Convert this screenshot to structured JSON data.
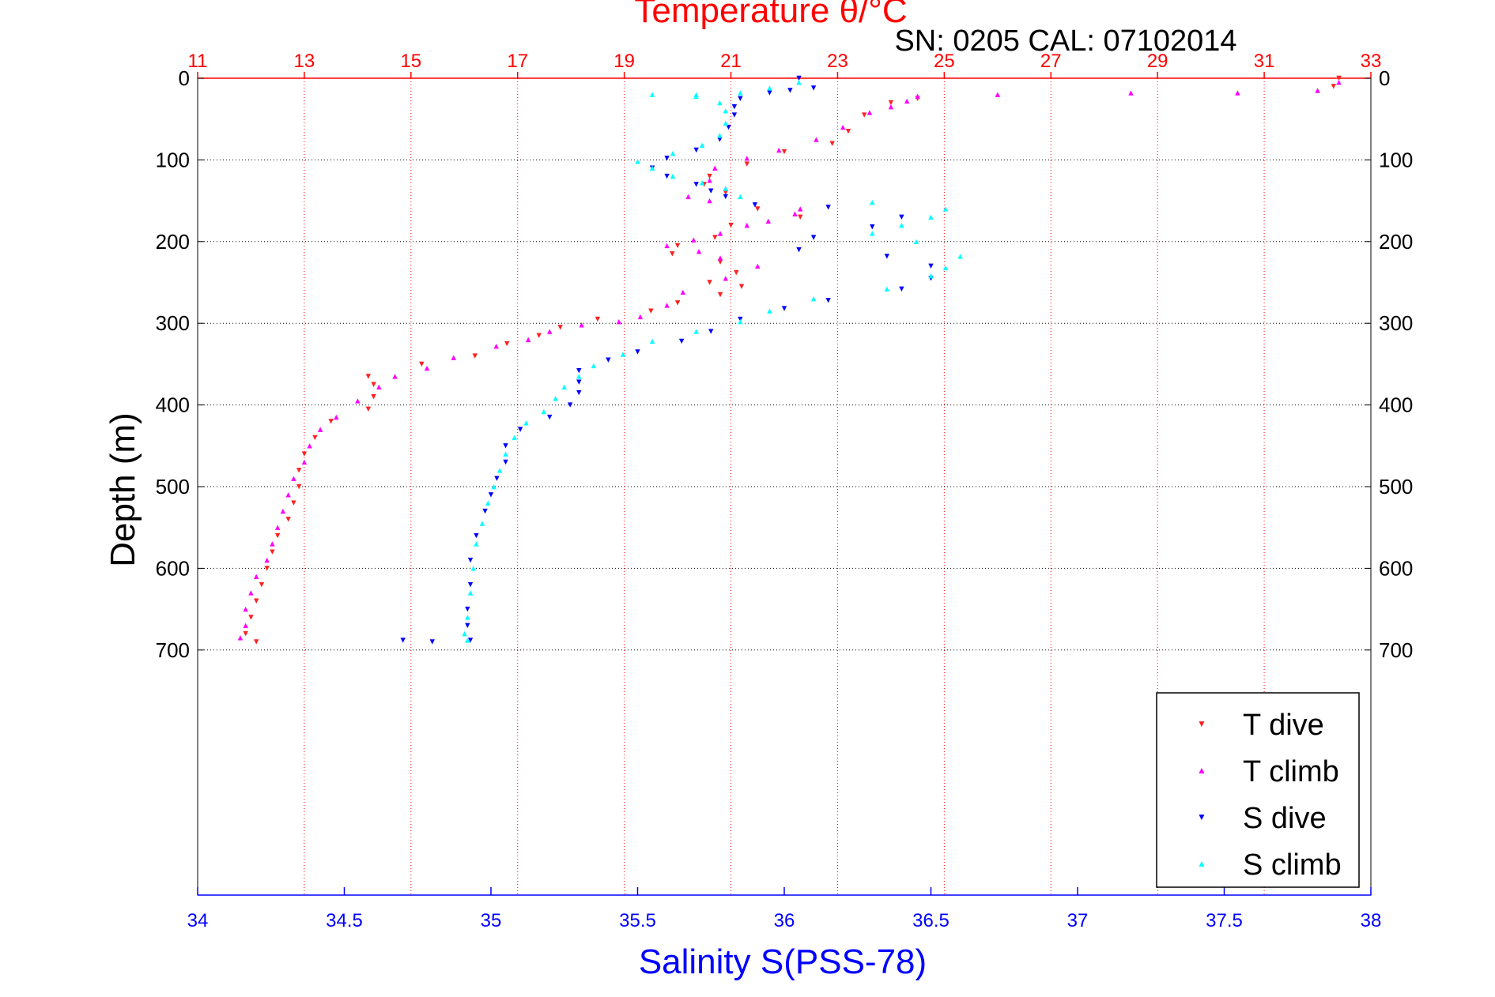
{
  "colors": {
    "temperature": "#ff0000",
    "salinity": "#0000ff",
    "t_dive": "#ff2020",
    "t_climb": "#ff00ff",
    "s_dive": "#0000ff",
    "s_climb": "#00ffff",
    "grid_top": "#ff0000",
    "grid_y": "#000000"
  },
  "chart_data": {
    "type": "scatter",
    "title": "Temperature θ/°C",
    "subtitle": "SN: 0205  CAL: 07102014",
    "ylabel": "Depth (m)",
    "xlabel_bottom": "Salinity S(PSS-78)",
    "xlabel_top": "Temperature θ/°C",
    "ylim": [
      0,
      1000
    ],
    "y_reversed": true,
    "y_ticks": [
      "0",
      "100",
      "200",
      "300",
      "400",
      "500",
      "600",
      "700"
    ],
    "y_tick_values": [
      0,
      100,
      200,
      300,
      400,
      500,
      600,
      700
    ],
    "x_top": {
      "label": "Temperature θ/°C",
      "range": [
        11,
        33
      ],
      "ticks": [
        "11",
        "13",
        "15",
        "17",
        "19",
        "21",
        "23",
        "25",
        "27",
        "29",
        "31",
        "33"
      ],
      "tick_values": [
        11,
        13,
        15,
        17,
        19,
        21,
        23,
        25,
        27,
        29,
        31,
        33
      ]
    },
    "x_bottom": {
      "label": "Salinity S(PSS-78)",
      "range": [
        34,
        38
      ],
      "ticks": [
        "34",
        "34.5",
        "35",
        "35.5",
        "36",
        "36.5",
        "37",
        "37.5",
        "38"
      ],
      "tick_values": [
        34,
        34.5,
        35,
        35.5,
        36,
        36.5,
        37,
        37.5,
        38
      ]
    },
    "grid": true,
    "legend_position": "bottom-right",
    "series": [
      {
        "name": "T dive",
        "axis": "temperature",
        "marker": "triangle-down",
        "points": [
          [
            32.4,
            0
          ],
          [
            32.3,
            10
          ],
          [
            24.5,
            25
          ],
          [
            24.0,
            30
          ],
          [
            23.5,
            45
          ],
          [
            23.2,
            65
          ],
          [
            22.9,
            80
          ],
          [
            22.0,
            90
          ],
          [
            21.3,
            105
          ],
          [
            20.6,
            120
          ],
          [
            20.5,
            130
          ],
          [
            20.9,
            140
          ],
          [
            21.5,
            160
          ],
          [
            22.3,
            170
          ],
          [
            21.0,
            180
          ],
          [
            20.7,
            195
          ],
          [
            20.0,
            205
          ],
          [
            19.9,
            215
          ],
          [
            20.8,
            225
          ],
          [
            21.1,
            238
          ],
          [
            20.6,
            250
          ],
          [
            21.2,
            255
          ],
          [
            20.8,
            265
          ],
          [
            20.0,
            275
          ],
          [
            19.5,
            285
          ],
          [
            18.5,
            295
          ],
          [
            17.8,
            305
          ],
          [
            17.4,
            315
          ],
          [
            16.8,
            325
          ],
          [
            16.2,
            340
          ],
          [
            15.2,
            350
          ],
          [
            14.2,
            365
          ],
          [
            14.3,
            375
          ],
          [
            14.3,
            390
          ],
          [
            14.2,
            405
          ],
          [
            13.5,
            420
          ],
          [
            13.2,
            440
          ],
          [
            13.0,
            460
          ],
          [
            12.9,
            480
          ],
          [
            12.9,
            500
          ],
          [
            12.8,
            520
          ],
          [
            12.7,
            540
          ],
          [
            12.5,
            560
          ],
          [
            12.4,
            580
          ],
          [
            12.3,
            600
          ],
          [
            12.2,
            620
          ],
          [
            12.1,
            640
          ],
          [
            12.0,
            660
          ],
          [
            11.9,
            680
          ],
          [
            12.1,
            690
          ]
        ]
      },
      {
        "name": "T climb",
        "axis": "temperature",
        "marker": "triangle-up",
        "points": [
          [
            32.4,
            5
          ],
          [
            32.0,
            15
          ],
          [
            30.5,
            18
          ],
          [
            28.5,
            18
          ],
          [
            26.0,
            20
          ],
          [
            24.5,
            22
          ],
          [
            24.3,
            28
          ],
          [
            24.0,
            35
          ],
          [
            23.6,
            42
          ],
          [
            23.1,
            60
          ],
          [
            22.6,
            75
          ],
          [
            21.9,
            88
          ],
          [
            21.3,
            98
          ],
          [
            20.7,
            110
          ],
          [
            20.6,
            125
          ],
          [
            20.9,
            135
          ],
          [
            20.2,
            145
          ],
          [
            20.6,
            150
          ],
          [
            22.3,
            160
          ],
          [
            22.2,
            166
          ],
          [
            21.7,
            175
          ],
          [
            21.3,
            180
          ],
          [
            20.8,
            190
          ],
          [
            20.3,
            198
          ],
          [
            19.8,
            205
          ],
          [
            20.4,
            212
          ],
          [
            20.8,
            220
          ],
          [
            21.5,
            230
          ],
          [
            20.9,
            245
          ],
          [
            20.1,
            262
          ],
          [
            19.8,
            278
          ],
          [
            19.3,
            292
          ],
          [
            18.9,
            298
          ],
          [
            18.2,
            302
          ],
          [
            17.6,
            310
          ],
          [
            17.2,
            320
          ],
          [
            16.6,
            328
          ],
          [
            15.8,
            342
          ],
          [
            15.3,
            355
          ],
          [
            14.7,
            365
          ],
          [
            14.4,
            378
          ],
          [
            14.0,
            395
          ],
          [
            13.6,
            415
          ],
          [
            13.3,
            430
          ],
          [
            13.1,
            450
          ],
          [
            13.0,
            470
          ],
          [
            12.8,
            490
          ],
          [
            12.7,
            510
          ],
          [
            12.6,
            530
          ],
          [
            12.5,
            550
          ],
          [
            12.4,
            570
          ],
          [
            12.3,
            590
          ],
          [
            12.1,
            610
          ],
          [
            12.0,
            630
          ],
          [
            11.9,
            650
          ],
          [
            11.9,
            670
          ],
          [
            11.8,
            685
          ]
        ]
      },
      {
        "name": "S dive",
        "axis": "salinity",
        "marker": "triangle-down",
        "points": [
          [
            36.05,
            0
          ],
          [
            36.1,
            12
          ],
          [
            36.02,
            15
          ],
          [
            35.95,
            18
          ],
          [
            35.85,
            25
          ],
          [
            35.83,
            35
          ],
          [
            35.83,
            45
          ],
          [
            35.81,
            60
          ],
          [
            35.78,
            75
          ],
          [
            35.7,
            88
          ],
          [
            35.6,
            98
          ],
          [
            35.55,
            110
          ],
          [
            35.6,
            120
          ],
          [
            35.7,
            130
          ],
          [
            35.75,
            138
          ],
          [
            35.8,
            145
          ],
          [
            35.9,
            155
          ],
          [
            36.15,
            158
          ],
          [
            36.4,
            170
          ],
          [
            36.3,
            182
          ],
          [
            36.1,
            195
          ],
          [
            36.05,
            210
          ],
          [
            36.35,
            218
          ],
          [
            36.5,
            230
          ],
          [
            36.5,
            245
          ],
          [
            36.4,
            258
          ],
          [
            36.15,
            272
          ],
          [
            36.0,
            282
          ],
          [
            35.85,
            295
          ],
          [
            35.75,
            310
          ],
          [
            35.65,
            322
          ],
          [
            35.5,
            335
          ],
          [
            35.4,
            345
          ],
          [
            35.3,
            358
          ],
          [
            35.3,
            372
          ],
          [
            35.3,
            385
          ],
          [
            35.27,
            400
          ],
          [
            35.2,
            415
          ],
          [
            35.1,
            430
          ],
          [
            35.05,
            450
          ],
          [
            35.05,
            470
          ],
          [
            35.02,
            490
          ],
          [
            35.0,
            510
          ],
          [
            34.98,
            530
          ],
          [
            34.95,
            560
          ],
          [
            34.93,
            590
          ],
          [
            34.93,
            620
          ],
          [
            34.92,
            650
          ],
          [
            34.92,
            670
          ],
          [
            34.93,
            688
          ],
          [
            34.8,
            690
          ],
          [
            34.7,
            688
          ]
        ]
      },
      {
        "name": "S climb",
        "axis": "salinity",
        "marker": "triangle-up",
        "points": [
          [
            36.05,
            5
          ],
          [
            35.95,
            12
          ],
          [
            35.85,
            18
          ],
          [
            35.7,
            20
          ],
          [
            35.55,
            20
          ],
          [
            35.7,
            22
          ],
          [
            35.78,
            30
          ],
          [
            35.8,
            40
          ],
          [
            35.8,
            55
          ],
          [
            35.78,
            70
          ],
          [
            35.72,
            82
          ],
          [
            35.62,
            92
          ],
          [
            35.5,
            102
          ],
          [
            35.55,
            110
          ],
          [
            35.62,
            120
          ],
          [
            35.72,
            128
          ],
          [
            35.8,
            135
          ],
          [
            35.85,
            145
          ],
          [
            36.3,
            152
          ],
          [
            36.55,
            160
          ],
          [
            36.5,
            170
          ],
          [
            36.4,
            180
          ],
          [
            36.3,
            190
          ],
          [
            36.45,
            200
          ],
          [
            36.6,
            218
          ],
          [
            36.55,
            232
          ],
          [
            36.5,
            242
          ],
          [
            36.35,
            258
          ],
          [
            36.1,
            270
          ],
          [
            35.95,
            285
          ],
          [
            35.85,
            298
          ],
          [
            35.7,
            310
          ],
          [
            35.55,
            322
          ],
          [
            35.45,
            338
          ],
          [
            35.35,
            352
          ],
          [
            35.3,
            365
          ],
          [
            35.25,
            378
          ],
          [
            35.22,
            392
          ],
          [
            35.18,
            408
          ],
          [
            35.12,
            422
          ],
          [
            35.08,
            440
          ],
          [
            35.05,
            460
          ],
          [
            35.03,
            480
          ],
          [
            35.01,
            500
          ],
          [
            34.99,
            520
          ],
          [
            34.97,
            545
          ],
          [
            34.95,
            570
          ],
          [
            34.94,
            600
          ],
          [
            34.93,
            630
          ],
          [
            34.92,
            660
          ],
          [
            34.91,
            680
          ],
          [
            34.92,
            688
          ]
        ]
      }
    ]
  }
}
